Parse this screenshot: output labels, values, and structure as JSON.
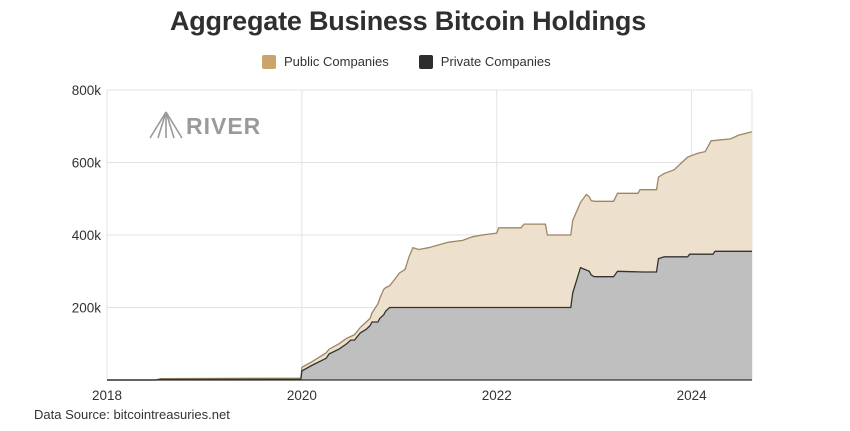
{
  "chart_data": {
    "type": "area",
    "title": "Aggregate Business Bitcoin Holdings",
    "xlabel": "",
    "ylabel": "",
    "xlim": [
      2018.0,
      2024.62
    ],
    "ylim": [
      0,
      800000
    ],
    "x_ticks": [
      {
        "value": 2018,
        "label": "2018"
      },
      {
        "value": 2020,
        "label": "2020"
      },
      {
        "value": 2022,
        "label": "2022"
      },
      {
        "value": 2024,
        "label": "2024"
      }
    ],
    "y_ticks": [
      {
        "value": 200000,
        "label": "200k"
      },
      {
        "value": 400000,
        "label": "400k"
      },
      {
        "value": 600000,
        "label": "600k"
      },
      {
        "value": 800000,
        "label": "800k"
      }
    ],
    "grid": true,
    "legend_position": "top-center",
    "stacking": "stacked",
    "series": [
      {
        "name": "Private Companies",
        "color": "#333333",
        "fill": "#bfbfbf",
        "points": [
          [
            2018.0,
            0
          ],
          [
            2018.5,
            0
          ],
          [
            2018.55,
            1500
          ],
          [
            2019.99,
            2000
          ],
          [
            2020.0,
            25000
          ],
          [
            2020.1,
            40000
          ],
          [
            2020.25,
            60000
          ],
          [
            2020.28,
            72000
          ],
          [
            2020.38,
            85000
          ],
          [
            2020.46,
            100000
          ],
          [
            2020.5,
            110000
          ],
          [
            2020.54,
            110000
          ],
          [
            2020.6,
            130000
          ],
          [
            2020.66,
            140000
          ],
          [
            2020.7,
            150000
          ],
          [
            2020.72,
            160000
          ],
          [
            2020.78,
            160000
          ],
          [
            2020.8,
            170000
          ],
          [
            2020.84,
            180000
          ],
          [
            2020.86,
            190000
          ],
          [
            2020.9,
            200000
          ],
          [
            2021.5,
            200000
          ],
          [
            2022.0,
            200000
          ],
          [
            2022.5,
            200000
          ],
          [
            2022.76,
            200000
          ],
          [
            2022.78,
            240000
          ],
          [
            2022.86,
            310000
          ],
          [
            2022.95,
            300000
          ],
          [
            2022.97,
            290000
          ],
          [
            2023.0,
            285000
          ],
          [
            2023.2,
            285000
          ],
          [
            2023.24,
            300000
          ],
          [
            2023.5,
            298000
          ],
          [
            2023.64,
            298000
          ],
          [
            2023.66,
            335000
          ],
          [
            2023.72,
            340000
          ],
          [
            2023.96,
            340000
          ],
          [
            2023.98,
            347000
          ],
          [
            2024.22,
            347000
          ],
          [
            2024.24,
            355000
          ],
          [
            2024.62,
            355000
          ]
        ]
      },
      {
        "name": "Public Companies",
        "color": "#9c8765",
        "fill": "#ede0cc",
        "points": [
          [
            2018.0,
            0
          ],
          [
            2018.5,
            0
          ],
          [
            2018.55,
            4000
          ],
          [
            2019.99,
            5000
          ],
          [
            2020.0,
            35000
          ],
          [
            2020.1,
            50000
          ],
          [
            2020.25,
            75000
          ],
          [
            2020.28,
            85000
          ],
          [
            2020.38,
            100000
          ],
          [
            2020.46,
            115000
          ],
          [
            2020.5,
            120000
          ],
          [
            2020.54,
            125000
          ],
          [
            2020.6,
            145000
          ],
          [
            2020.66,
            160000
          ],
          [
            2020.7,
            170000
          ],
          [
            2020.72,
            185000
          ],
          [
            2020.78,
            210000
          ],
          [
            2020.8,
            225000
          ],
          [
            2020.84,
            250000
          ],
          [
            2020.86,
            255000
          ],
          [
            2020.9,
            260000
          ],
          [
            2020.96,
            280000
          ],
          [
            2021.0,
            295000
          ],
          [
            2021.06,
            305000
          ],
          [
            2021.1,
            340000
          ],
          [
            2021.14,
            365000
          ],
          [
            2021.2,
            360000
          ],
          [
            2021.3,
            365000
          ],
          [
            2021.5,
            380000
          ],
          [
            2021.65,
            385000
          ],
          [
            2021.75,
            395000
          ],
          [
            2021.85,
            400000
          ],
          [
            2022.0,
            405000
          ],
          [
            2022.02,
            420000
          ],
          [
            2022.25,
            420000
          ],
          [
            2022.28,
            430000
          ],
          [
            2022.5,
            430000
          ],
          [
            2022.52,
            400000
          ],
          [
            2022.76,
            400000
          ],
          [
            2022.78,
            440000
          ],
          [
            2022.86,
            490000
          ],
          [
            2022.92,
            512000
          ],
          [
            2022.95,
            505000
          ],
          [
            2022.97,
            495000
          ],
          [
            2023.0,
            493000
          ],
          [
            2023.2,
            493000
          ],
          [
            2023.24,
            515000
          ],
          [
            2023.45,
            515000
          ],
          [
            2023.47,
            525000
          ],
          [
            2023.64,
            525000
          ],
          [
            2023.66,
            560000
          ],
          [
            2023.72,
            570000
          ],
          [
            2023.82,
            580000
          ],
          [
            2023.9,
            600000
          ],
          [
            2023.96,
            615000
          ],
          [
            2024.06,
            625000
          ],
          [
            2024.14,
            630000
          ],
          [
            2024.2,
            660000
          ],
          [
            2024.4,
            665000
          ],
          [
            2024.48,
            675000
          ],
          [
            2024.62,
            685000
          ]
        ]
      }
    ]
  },
  "legend": {
    "items": [
      {
        "label": "Public Companies",
        "color": "#c9a56a"
      },
      {
        "label": "Private Companies",
        "color": "#2e2e2e"
      }
    ]
  },
  "watermark": {
    "text": "RIVER",
    "icon": "river-logo-icon",
    "color": "#9a9a9a"
  },
  "source": {
    "text": "Data Source: bitcointreasuries.net"
  }
}
